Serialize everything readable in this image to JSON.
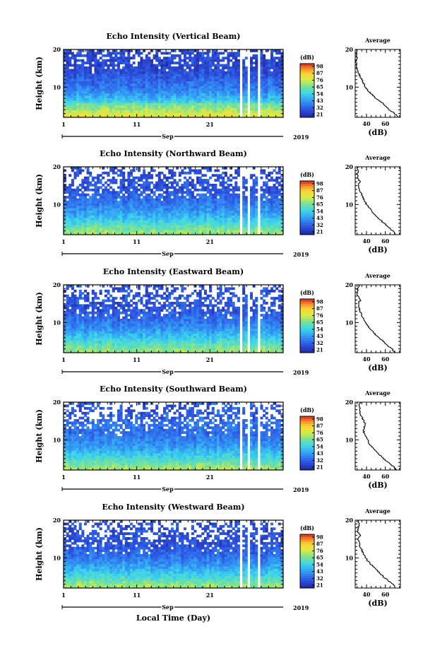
{
  "chart_data": {
    "type": "heatmap",
    "x_axis_label": "Local Time (Day)",
    "month_label": "Sep",
    "year_label": "2019",
    "x_ticks": [
      "1",
      "11",
      "21"
    ],
    "x_range": [
      1,
      31
    ],
    "y_label": "Height (km)",
    "y_ticks": [
      "10",
      "20"
    ],
    "y_range": [
      2,
      20
    ],
    "colorbar_title": "(dB)",
    "colorbar_ticks": [
      "98",
      "87",
      "76",
      "65",
      "54",
      "43",
      "32",
      "21"
    ],
    "colorbar_range": [
      21,
      98
    ],
    "avg_title": "Average",
    "avg_xlabel": "(dB)",
    "avg_xticks": [
      "40",
      "60"
    ],
    "avg_xrange": [
      28,
      76
    ],
    "panels": [
      {
        "title": "Echo Intensity (Vertical Beam)",
        "average_profile": [
          [
            2,
            73
          ],
          [
            3,
            70
          ],
          [
            4,
            64
          ],
          [
            5,
            60
          ],
          [
            6,
            56
          ],
          [
            7,
            50
          ],
          [
            8,
            46
          ],
          [
            9,
            42
          ],
          [
            10,
            39
          ],
          [
            11,
            37
          ],
          [
            12,
            35
          ],
          [
            13,
            33
          ],
          [
            14,
            31
          ],
          [
            15,
            30
          ],
          [
            16,
            29
          ],
          [
            17,
            29
          ],
          [
            18,
            30
          ],
          [
            19,
            29
          ],
          [
            20,
            30
          ]
        ]
      },
      {
        "title": "Echo Intensity (Northward Beam)",
        "average_profile": [
          [
            2,
            71
          ],
          [
            3,
            68
          ],
          [
            4,
            63
          ],
          [
            5,
            59
          ],
          [
            6,
            54
          ],
          [
            7,
            50
          ],
          [
            8,
            46
          ],
          [
            9,
            43
          ],
          [
            10,
            40
          ],
          [
            11,
            38
          ],
          [
            12,
            36
          ],
          [
            13,
            34
          ],
          [
            14,
            32
          ],
          [
            15,
            31
          ],
          [
            16,
            33
          ],
          [
            17,
            31
          ],
          [
            18,
            30
          ],
          [
            19,
            31
          ],
          [
            20,
            31
          ]
        ]
      },
      {
        "title": "Echo Intensity (Eastward Beam)",
        "average_profile": [
          [
            2,
            70
          ],
          [
            3,
            67
          ],
          [
            4,
            62
          ],
          [
            5,
            58
          ],
          [
            6,
            53
          ],
          [
            7,
            49
          ],
          [
            8,
            45
          ],
          [
            9,
            42
          ],
          [
            10,
            39
          ],
          [
            11,
            37
          ],
          [
            12,
            35
          ],
          [
            13,
            33
          ],
          [
            14,
            32
          ],
          [
            15,
            31
          ],
          [
            16,
            34
          ],
          [
            17,
            31
          ],
          [
            18,
            30
          ],
          [
            19,
            31
          ],
          [
            20,
            32
          ]
        ]
      },
      {
        "title": "Echo Intensity (Southward Beam)",
        "average_profile": [
          [
            2,
            72
          ],
          [
            3,
            68
          ],
          [
            4,
            63
          ],
          [
            5,
            58
          ],
          [
            6,
            54
          ],
          [
            7,
            50
          ],
          [
            8,
            46
          ],
          [
            9,
            43
          ],
          [
            10,
            41
          ],
          [
            11,
            39
          ],
          [
            12,
            37
          ],
          [
            13,
            37
          ],
          [
            14,
            39
          ],
          [
            15,
            37
          ],
          [
            16,
            35
          ],
          [
            17,
            33
          ],
          [
            18,
            33
          ],
          [
            19,
            32
          ],
          [
            20,
            34
          ]
        ]
      },
      {
        "title": "Echo Intensity (Westward Beam)",
        "average_profile": [
          [
            2,
            71
          ],
          [
            3,
            68
          ],
          [
            4,
            63
          ],
          [
            5,
            58
          ],
          [
            6,
            54
          ],
          [
            7,
            50
          ],
          [
            8,
            46
          ],
          [
            9,
            42
          ],
          [
            10,
            39
          ],
          [
            11,
            37
          ],
          [
            12,
            35
          ],
          [
            13,
            33
          ],
          [
            14,
            32
          ],
          [
            15,
            31
          ],
          [
            16,
            33
          ],
          [
            17,
            31
          ],
          [
            18,
            31
          ],
          [
            19,
            32
          ],
          [
            20,
            31
          ]
        ]
      }
    ]
  }
}
